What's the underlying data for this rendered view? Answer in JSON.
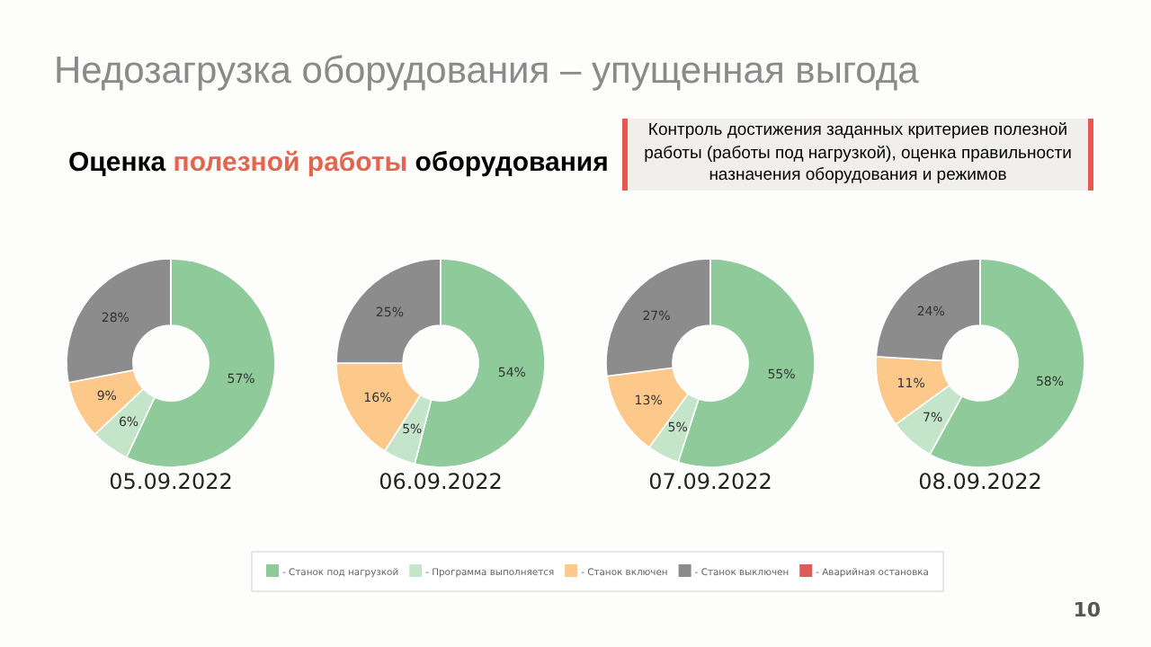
{
  "chart_data": [
    {
      "type": "donut",
      "title": "Недозагрузка оборудования – упущенная выгода",
      "subtitle": "Оценка полезной работы оборудования",
      "annotations": [
        "Контроль достижения заданных критериев полезной работы (работы под нагрузкой), оценка правильности назначения оборудования и режимов",
        "10"
      ],
      "xlabel": "05.09.2022",
      "categories": [
        "- Станок под нагрузкой",
        "- Программа выполняется",
        "- Станок включен",
        "- Станок выключен",
        "- Аварийная остановка"
      ],
      "values": [
        57,
        6,
        9,
        28,
        0
      ],
      "value_labels": [
        "57%",
        "6%",
        "9%",
        "28%",
        null
      ],
      "colors": [
        "#8fca9a",
        "#c5e5cb",
        "#fcc98b",
        "#8c8c8c",
        "#e05a5a"
      ],
      "legend": "bottom"
    },
    {
      "type": "donut",
      "xlabel": "06.09.2022",
      "categories": [
        null,
        null,
        null,
        null,
        null
      ],
      "values": [
        54,
        5,
        16,
        25,
        0
      ],
      "value_labels": [
        "54%",
        "5%",
        "16%",
        "25%",
        null
      ],
      "colors": [
        "#8fca9a",
        "#c5e5cb",
        "#fcc98b",
        "#8c8c8c",
        "#e05a5a"
      ]
    },
    {
      "type": "donut",
      "xlabel": "07.09.2022",
      "categories": [
        null,
        null,
        null,
        null,
        null
      ],
      "values": [
        55,
        5,
        13,
        27,
        0
      ],
      "value_labels": [
        "55%",
        "5%",
        "13%",
        "27%",
        null
      ],
      "colors": [
        "#8fca9a",
        "#c5e5cb",
        "#fcc98b",
        "#8c8c8c",
        "#e05a5a"
      ]
    },
    {
      "type": "donut",
      "xlabel": "08.09.2022",
      "categories": [
        null,
        null,
        null,
        null,
        null
      ],
      "values": [
        58,
        7,
        11,
        24,
        0
      ],
      "value_labels": [
        "58%",
        "7%",
        "11%",
        "24%",
        null
      ],
      "colors": [
        "#8fca9a",
        "#c5e5cb",
        "#fcc98b",
        "#8c8c8c",
        "#e05a5a"
      ]
    }
  ]
}
